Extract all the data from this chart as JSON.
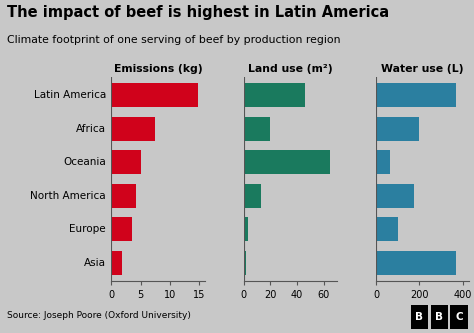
{
  "title": "The impact of beef is highest in Latin America",
  "subtitle": "Climate footprint of one serving of beef by production region",
  "regions": [
    "Latin America",
    "Africa",
    "Oceania",
    "North America",
    "Europe",
    "Asia"
  ],
  "emissions": [
    14.8,
    7.5,
    5.0,
    4.2,
    3.5,
    1.8
  ],
  "land_use": [
    46,
    20,
    65,
    13,
    3,
    1.5
  ],
  "water_use": [
    370,
    200,
    65,
    175,
    100,
    370
  ],
  "emissions_color": "#d0021b",
  "land_use_color": "#1a7a5e",
  "water_use_color": "#2b7fa0",
  "bg_color": "#c8c8c8",
  "source_text": "Source: Joseph Poore (Oxford University)",
  "emissions_label": "Emissions (kg)",
  "land_label": "Land use (m²)",
  "water_label": "Water use (L)",
  "emissions_xlim": [
    0,
    16
  ],
  "land_xlim": [
    0,
    70
  ],
  "water_xlim": [
    0,
    430
  ],
  "emissions_xticks": [
    0,
    5,
    10,
    15
  ],
  "land_xticks": [
    0,
    20,
    40,
    60
  ],
  "water_xticks": [
    0,
    200,
    400
  ]
}
